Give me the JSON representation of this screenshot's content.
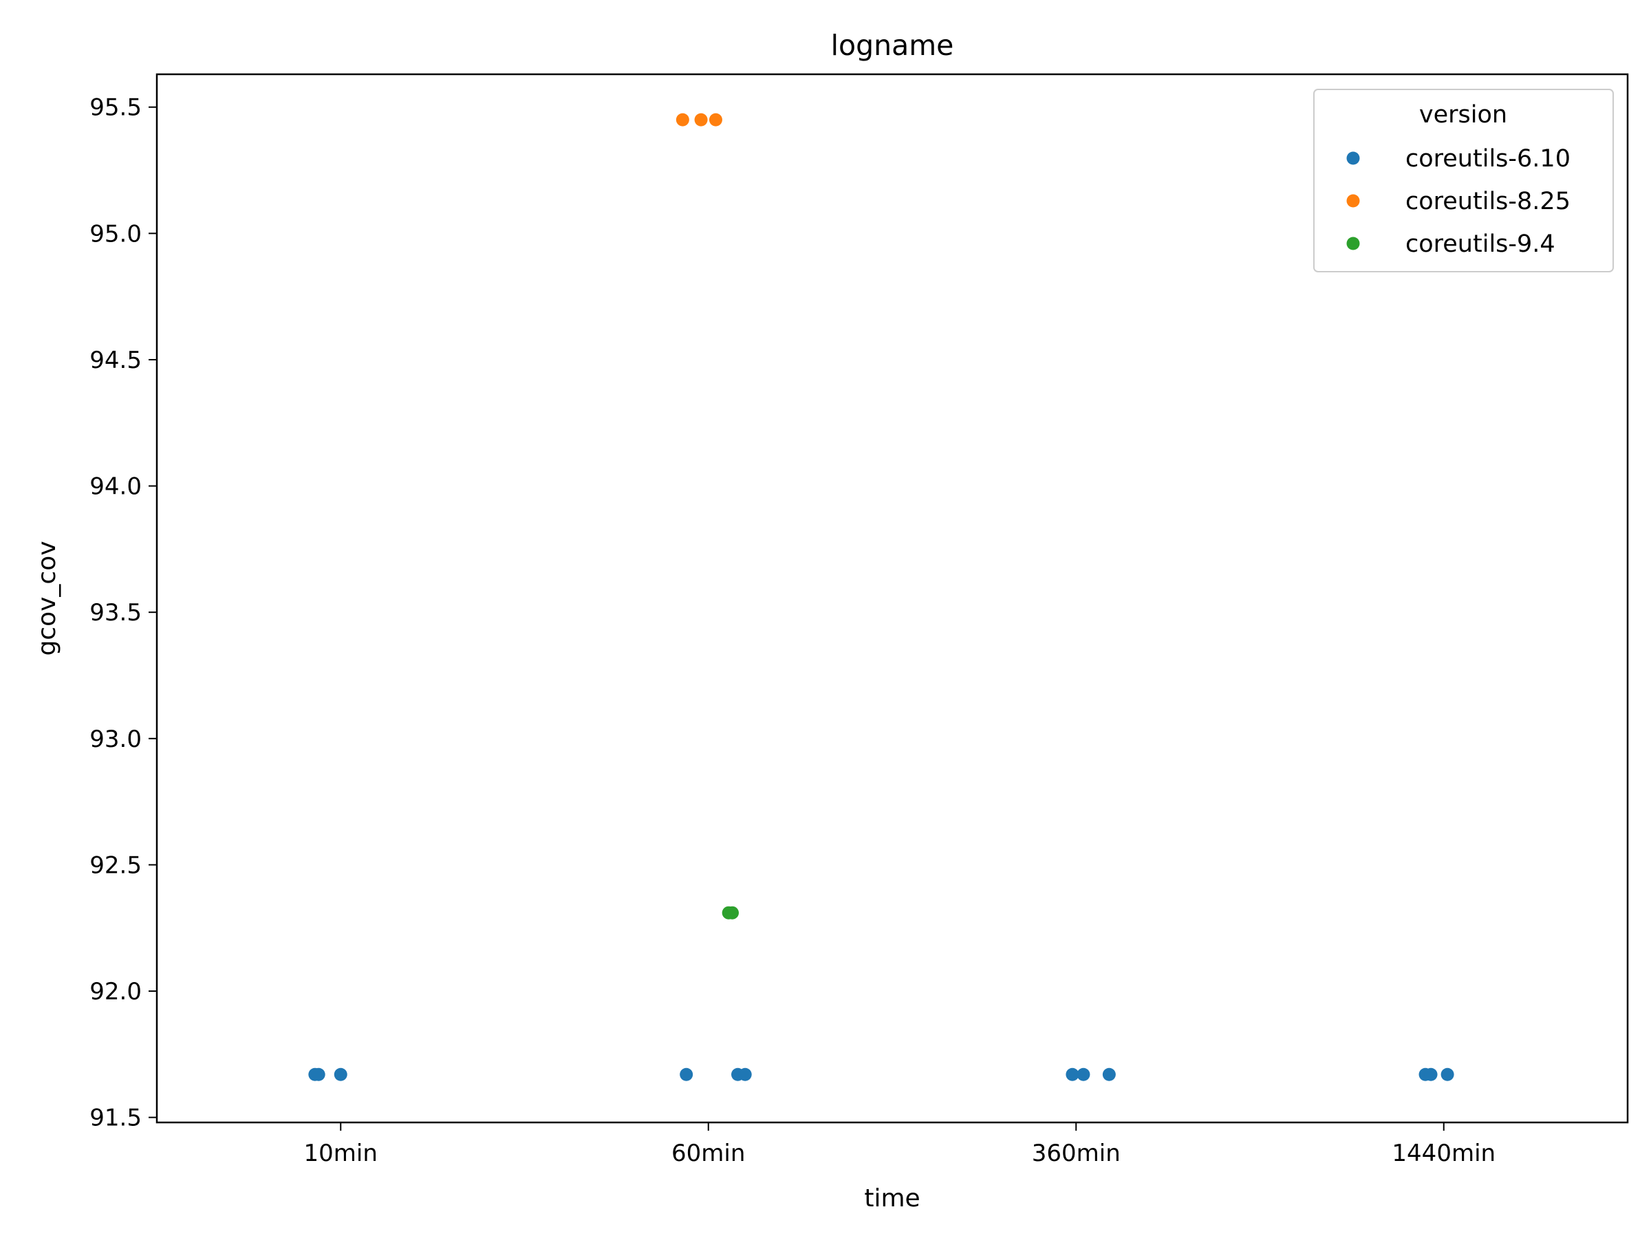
{
  "chart_data": {
    "type": "scatter",
    "title": "logname",
    "xlabel": "time",
    "ylabel": "gcov_cov",
    "categories": [
      "10min",
      "60min",
      "360min",
      "1440min"
    ],
    "ylim": [
      91.48,
      95.63
    ],
    "yticks": [
      91.5,
      92.0,
      92.5,
      93.0,
      93.5,
      94.0,
      94.5,
      95.0,
      95.5
    ],
    "ytick_labels": [
      "91.5",
      "92.0",
      "92.5",
      "93.0",
      "93.5",
      "94.0",
      "94.5",
      "95.0",
      "95.5"
    ],
    "grid": false,
    "legend": {
      "title": "version",
      "placement": "top-right"
    },
    "series": [
      {
        "name": "coreutils-6.10",
        "color": "#1f77b4",
        "points": [
          {
            "x": "10min",
            "jitter": -0.07,
            "y": 91.67
          },
          {
            "x": "10min",
            "jitter": -0.06,
            "y": 91.67
          },
          {
            "x": "10min",
            "jitter": 0.0,
            "y": 91.67
          },
          {
            "x": "60min",
            "jitter": -0.06,
            "y": 91.67
          },
          {
            "x": "60min",
            "jitter": 0.08,
            "y": 91.67
          },
          {
            "x": "60min",
            "jitter": 0.1,
            "y": 91.67
          },
          {
            "x": "360min",
            "jitter": -0.01,
            "y": 91.67
          },
          {
            "x": "360min",
            "jitter": 0.02,
            "y": 91.67
          },
          {
            "x": "360min",
            "jitter": 0.09,
            "y": 91.67
          },
          {
            "x": "1440min",
            "jitter": -0.05,
            "y": 91.67
          },
          {
            "x": "1440min",
            "jitter": -0.035,
            "y": 91.67
          },
          {
            "x": "1440min",
            "jitter": 0.01,
            "y": 91.67
          }
        ]
      },
      {
        "name": "coreutils-8.25",
        "color": "#ff7f0e",
        "points": [
          {
            "x": "60min",
            "jitter": -0.07,
            "y": 95.45
          },
          {
            "x": "60min",
            "jitter": -0.02,
            "y": 95.45
          },
          {
            "x": "60min",
            "jitter": 0.02,
            "y": 95.45
          }
        ]
      },
      {
        "name": "coreutils-9.4",
        "color": "#2ca02c",
        "points": [
          {
            "x": "60min",
            "jitter": 0.055,
            "y": 92.31
          },
          {
            "x": "60min",
            "jitter": 0.065,
            "y": 92.31
          }
        ]
      }
    ]
  }
}
